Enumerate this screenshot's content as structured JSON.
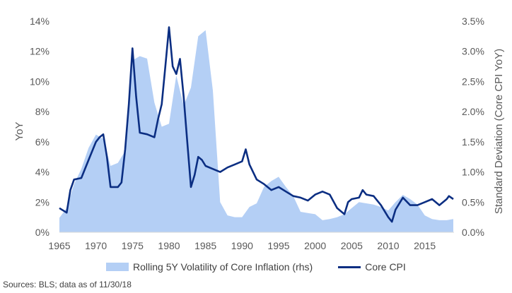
{
  "chart_data": {
    "type": "line",
    "title": "",
    "xlabel": "",
    "ylabel": "YoY",
    "y2label": "Standard Deviation (Core CPI YoY)",
    "xlim": [
      1965,
      2019
    ],
    "ylim": [
      0,
      14
    ],
    "y2lim": [
      0,
      3.5
    ],
    "x_ticks": [
      "1965",
      "1970",
      "1975",
      "1980",
      "1985",
      "1990",
      "1995",
      "2000",
      "2005",
      "2010",
      "2015"
    ],
    "y_ticks": [
      "0%",
      "2%",
      "4%",
      "6%",
      "8%",
      "10%",
      "12%",
      "14%"
    ],
    "y2_ticks": [
      "0.0%",
      "0.5%",
      "1.0%",
      "1.5%",
      "2.0%",
      "2.5%",
      "3.0%",
      "3.5%"
    ],
    "grid": false,
    "legend_position": "bottom",
    "colors": {
      "area": "#b4cff5",
      "line": "#0b2e82",
      "axis": "#d9d9d9"
    },
    "series": [
      {
        "name": "Rolling 5Y Volatility of Core Inflation (rhs)",
        "type": "area",
        "axis": "right",
        "points": [
          [
            1965,
            0.24
          ],
          [
            1966,
            0.4
          ],
          [
            1967,
            0.8
          ],
          [
            1968,
            1.05
          ],
          [
            1969,
            1.4
          ],
          [
            1970,
            1.62
          ],
          [
            1971,
            1.55
          ],
          [
            1972,
            1.1
          ],
          [
            1973,
            1.15
          ],
          [
            1974,
            1.35
          ],
          [
            1975,
            2.85
          ],
          [
            1976,
            2.92
          ],
          [
            1977,
            2.88
          ],
          [
            1978,
            2.15
          ],
          [
            1979,
            1.75
          ],
          [
            1980,
            1.8
          ],
          [
            1981,
            2.6
          ],
          [
            1982,
            2.1
          ],
          [
            1983,
            2.4
          ],
          [
            1984,
            3.25
          ],
          [
            1985,
            3.35
          ],
          [
            1986,
            2.35
          ],
          [
            1987,
            0.5
          ],
          [
            1988,
            0.28
          ],
          [
            1989,
            0.25
          ],
          [
            1990,
            0.25
          ],
          [
            1991,
            0.42
          ],
          [
            1992,
            0.48
          ],
          [
            1993,
            0.75
          ],
          [
            1994,
            0.85
          ],
          [
            1995,
            0.92
          ],
          [
            1996,
            0.75
          ],
          [
            1997,
            0.6
          ],
          [
            1998,
            0.34
          ],
          [
            1999,
            0.32
          ],
          [
            2000,
            0.3
          ],
          [
            2001,
            0.2
          ],
          [
            2002,
            0.22
          ],
          [
            2003,
            0.25
          ],
          [
            2004,
            0.3
          ],
          [
            2005,
            0.4
          ],
          [
            2006,
            0.5
          ],
          [
            2007,
            0.48
          ],
          [
            2008,
            0.46
          ],
          [
            2009,
            0.42
          ],
          [
            2010,
            0.36
          ],
          [
            2011,
            0.5
          ],
          [
            2012,
            0.62
          ],
          [
            2013,
            0.55
          ],
          [
            2014,
            0.46
          ],
          [
            2015,
            0.28
          ],
          [
            2016,
            0.22
          ],
          [
            2017,
            0.2
          ],
          [
            2018,
            0.2
          ],
          [
            2018.9,
            0.22
          ]
        ]
      },
      {
        "name": "Core CPI",
        "type": "line",
        "axis": "left",
        "points": [
          [
            1965,
            1.6
          ],
          [
            1966,
            1.3
          ],
          [
            1966.5,
            2.8
          ],
          [
            1967,
            3.5
          ],
          [
            1968,
            3.6
          ],
          [
            1969,
            4.8
          ],
          [
            1970,
            6.0
          ],
          [
            1970.5,
            6.3
          ],
          [
            1971,
            6.5
          ],
          [
            1971.5,
            5.0
          ],
          [
            1972,
            3.0
          ],
          [
            1973,
            3.0
          ],
          [
            1973.5,
            3.3
          ],
          [
            1974,
            5.5
          ],
          [
            1974.5,
            8.5
          ],
          [
            1975,
            12.2
          ],
          [
            1975.5,
            9.0
          ],
          [
            1976,
            6.6
          ],
          [
            1977,
            6.5
          ],
          [
            1978,
            6.3
          ],
          [
            1978.5,
            7.5
          ],
          [
            1979,
            8.5
          ],
          [
            1979.5,
            11.0
          ],
          [
            1980,
            13.6
          ],
          [
            1980.5,
            11.0
          ],
          [
            1981,
            10.5
          ],
          [
            1981.5,
            11.5
          ],
          [
            1982,
            9.0
          ],
          [
            1982.5,
            6.0
          ],
          [
            1983,
            3.0
          ],
          [
            1983.5,
            3.8
          ],
          [
            1984,
            5.0
          ],
          [
            1984.5,
            4.8
          ],
          [
            1985,
            4.4
          ],
          [
            1986,
            4.2
          ],
          [
            1987,
            4.0
          ],
          [
            1988,
            4.3
          ],
          [
            1989,
            4.5
          ],
          [
            1990,
            4.7
          ],
          [
            1990.5,
            5.5
          ],
          [
            1991,
            4.5
          ],
          [
            1992,
            3.5
          ],
          [
            1993,
            3.2
          ],
          [
            1994,
            2.8
          ],
          [
            1995,
            3.0
          ],
          [
            1996,
            2.7
          ],
          [
            1997,
            2.4
          ],
          [
            1998,
            2.3
          ],
          [
            1999,
            2.1
          ],
          [
            2000,
            2.5
          ],
          [
            2001,
            2.7
          ],
          [
            2002,
            2.5
          ],
          [
            2003,
            1.6
          ],
          [
            2004,
            1.2
          ],
          [
            2004.5,
            2.0
          ],
          [
            2005,
            2.2
          ],
          [
            2006,
            2.3
          ],
          [
            2006.5,
            2.8
          ],
          [
            2007,
            2.5
          ],
          [
            2008,
            2.4
          ],
          [
            2009,
            1.8
          ],
          [
            2010,
            1.0
          ],
          [
            2010.5,
            0.7
          ],
          [
            2011,
            1.5
          ],
          [
            2012,
            2.3
          ],
          [
            2013,
            1.8
          ],
          [
            2014,
            1.8
          ],
          [
            2015,
            2.0
          ],
          [
            2016,
            2.2
          ],
          [
            2017,
            1.8
          ],
          [
            2018,
            2.2
          ],
          [
            2018.3,
            2.4
          ],
          [
            2018.9,
            2.2
          ]
        ]
      }
    ]
  },
  "legend": {
    "area_label": "Rolling 5Y Volatility of Core Inflation (rhs)",
    "line_label": "Core CPI"
  },
  "footer": {
    "source": "Sources: BLS; data as of 11/30/18"
  }
}
